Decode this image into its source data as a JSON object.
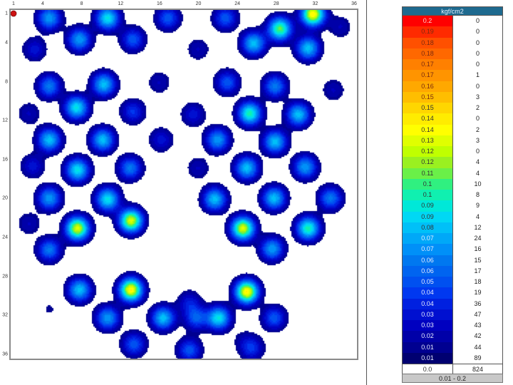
{
  "chart_data": {
    "type": "heatmap",
    "title": "",
    "unit": "kgf/cm2",
    "x_ticks": [
      "1",
      "4",
      "8",
      "12",
      "16",
      "20",
      "24",
      "28",
      "32",
      "36"
    ],
    "y_ticks": [
      "1",
      "4",
      "8",
      "12",
      "16",
      "20",
      "24",
      "28",
      "32",
      "36"
    ],
    "grid_size": [
      36,
      36
    ],
    "xlim": [
      1,
      36
    ],
    "ylim": [
      1,
      36
    ],
    "marker": {
      "col": 1,
      "row": 1,
      "color": "#cc1111"
    },
    "hotspots": [
      {
        "col": 4.6,
        "row": 1.4,
        "value": 0.07
      },
      {
        "col": 10.6,
        "row": 1.4,
        "value": 0.09
      },
      {
        "col": 7.7,
        "row": 3.6,
        "value": 0.07
      },
      {
        "col": 13.2,
        "row": 3.6,
        "value": 0.05
      },
      {
        "col": 3.1,
        "row": 4.6,
        "value": 0.03
      },
      {
        "col": 16.8,
        "row": 1.4,
        "value": 0.05
      },
      {
        "col": 4.6,
        "row": 8.4,
        "value": 0.06
      },
      {
        "col": 10.2,
        "row": 8.2,
        "value": 0.08
      },
      {
        "col": 15.9,
        "row": 8,
        "value": 0.02
      },
      {
        "col": 2.5,
        "row": 11.2,
        "value": 0.02
      },
      {
        "col": 7.4,
        "row": 10.6,
        "value": 0.09
      },
      {
        "col": 13.2,
        "row": 11,
        "value": 0.04
      },
      {
        "col": 4.6,
        "row": 13.9,
        "value": 0.08
      },
      {
        "col": 10.1,
        "row": 13.9,
        "value": 0.08
      },
      {
        "col": 16.1,
        "row": 13.9,
        "value": 0.03
      },
      {
        "col": 2.9,
        "row": 16.6,
        "value": 0.03
      },
      {
        "col": 7.5,
        "row": 17,
        "value": 0.09
      },
      {
        "col": 12.9,
        "row": 16.8,
        "value": 0.06
      },
      {
        "col": 4.6,
        "row": 19.9,
        "value": 0.07
      },
      {
        "col": 10.6,
        "row": 20,
        "value": 0.09
      },
      {
        "col": 2.5,
        "row": 22.5,
        "value": 0.02
      },
      {
        "col": 7.5,
        "row": 23,
        "value": 0.13
      },
      {
        "col": 13,
        "row": 22.2,
        "value": 0.13
      },
      {
        "col": 4.6,
        "row": 25.2,
        "value": 0.06
      },
      {
        "col": 7.7,
        "row": 29.3,
        "value": 0.08
      },
      {
        "col": 13,
        "row": 29.3,
        "value": 0.14
      },
      {
        "col": 4.6,
        "row": 31.3,
        "value": 0.01
      },
      {
        "col": 10.6,
        "row": 32.2,
        "value": 0.07
      },
      {
        "col": 16.3,
        "row": 32.2,
        "value": 0.08
      },
      {
        "col": 13.3,
        "row": 34.9,
        "value": 0.05
      },
      {
        "col": 22.7,
        "row": 1.4,
        "value": 0.05
      },
      {
        "col": 28.3,
        "row": 2.5,
        "value": 0.11
      },
      {
        "col": 25.6,
        "row": 4,
        "value": 0.08
      },
      {
        "col": 31.2,
        "row": 4.5,
        "value": 0.08
      },
      {
        "col": 31.7,
        "row": 1,
        "value": 0.14
      },
      {
        "col": 34.5,
        "row": 2.3,
        "value": 0.02
      },
      {
        "col": 19.9,
        "row": 4.6,
        "value": 0.02
      },
      {
        "col": 22.9,
        "row": 8,
        "value": 0.05
      },
      {
        "col": 27.8,
        "row": 8.4,
        "value": 0.06
      },
      {
        "col": 33.8,
        "row": 8.8,
        "value": 0.02
      },
      {
        "col": 19.4,
        "row": 11.3,
        "value": 0.03
      },
      {
        "col": 25.2,
        "row": 11.2,
        "value": 0.1
      },
      {
        "col": 30.2,
        "row": 11.3,
        "value": 0.08
      },
      {
        "col": 21.9,
        "row": 13.9,
        "value": 0.07
      },
      {
        "col": 27.8,
        "row": 14.1,
        "value": 0.08
      },
      {
        "col": 19.9,
        "row": 16.8,
        "value": 0.02
      },
      {
        "col": 24.9,
        "row": 16.8,
        "value": 0.08
      },
      {
        "col": 30.9,
        "row": 16.7,
        "value": 0.07
      },
      {
        "col": 21.6,
        "row": 20,
        "value": 0.08
      },
      {
        "col": 27.7,
        "row": 19.9,
        "value": 0.08
      },
      {
        "col": 33.5,
        "row": 19.9,
        "value": 0.06
      },
      {
        "col": 24.5,
        "row": 23,
        "value": 0.13
      },
      {
        "col": 31.2,
        "row": 23,
        "value": 0.1
      },
      {
        "col": 27.5,
        "row": 25.1,
        "value": 0.07
      },
      {
        "col": 24.9,
        "row": 29.5,
        "value": 0.14
      },
      {
        "col": 19.7,
        "row": 32.2,
        "value": 0.05
      },
      {
        "col": 22,
        "row": 32.2,
        "value": 0.09
      },
      {
        "col": 27.7,
        "row": 32.2,
        "value": 0.05
      },
      {
        "col": 19,
        "row": 35.5,
        "value": 0.05
      },
      {
        "col": 25.4,
        "row": 35.3,
        "value": 0.04
      },
      {
        "col": 24.5,
        "row": 34.4,
        "value": 0.01
      },
      {
        "col": 19,
        "row": 30.6,
        "value": 0.03
      }
    ]
  },
  "legend": {
    "header": "kgf/cm2",
    "rows": [
      {
        "label": "0.2",
        "count": "0",
        "color": "#ff0000"
      },
      {
        "label": "0.19",
        "count": "0",
        "color": "#ff2a00"
      },
      {
        "label": "0.18",
        "count": "0",
        "color": "#ff5000"
      },
      {
        "label": "0.18",
        "count": "0",
        "color": "#ff6800"
      },
      {
        "label": "0.17",
        "count": "0",
        "color": "#ff8000"
      },
      {
        "label": "0.17",
        "count": "1",
        "color": "#ff9400"
      },
      {
        "label": "0.16",
        "count": "0",
        "color": "#ffa800"
      },
      {
        "label": "0.15",
        "count": "3",
        "color": "#ffbe00"
      },
      {
        "label": "0.15",
        "count": "2",
        "color": "#ffd600"
      },
      {
        "label": "0.14",
        "count": "0",
        "color": "#ffec00"
      },
      {
        "label": "0.14",
        "count": "2",
        "color": "#ffff00"
      },
      {
        "label": "0.13",
        "count": "3",
        "color": "#e0ff00"
      },
      {
        "label": "0.12",
        "count": "0",
        "color": "#c0ff00"
      },
      {
        "label": "0.12",
        "count": "4",
        "color": "#9af020"
      },
      {
        "label": "0.11",
        "count": "4",
        "color": "#6af048"
      },
      {
        "label": "0.1",
        "count": "10",
        "color": "#30f080"
      },
      {
        "label": "0.1",
        "count": "8",
        "color": "#10f0b0"
      },
      {
        "label": "0.09",
        "count": "9",
        "color": "#00e8d8"
      },
      {
        "label": "0.09",
        "count": "4",
        "color": "#00d8f4"
      },
      {
        "label": "0.08",
        "count": "12",
        "color": "#00c0f8"
      },
      {
        "label": "0.07",
        "count": "24",
        "color": "#00a8f8"
      },
      {
        "label": "0.07",
        "count": "16",
        "color": "#0090f8"
      },
      {
        "label": "0.06",
        "count": "15",
        "color": "#0078f0"
      },
      {
        "label": "0.06",
        "count": "17",
        "color": "#0064f0"
      },
      {
        "label": "0.05",
        "count": "18",
        "color": "#0050f0"
      },
      {
        "label": "0.04",
        "count": "19",
        "color": "#0038f0"
      },
      {
        "label": "0.04",
        "count": "36",
        "color": "#0020e0"
      },
      {
        "label": "0.03",
        "count": "47",
        "color": "#0010d0"
      },
      {
        "label": "0.03",
        "count": "43",
        "color": "#0000c0"
      },
      {
        "label": "0.02",
        "count": "42",
        "color": "#0000a8"
      },
      {
        "label": "0.01",
        "count": "44",
        "color": "#000090"
      },
      {
        "label": "0.01",
        "count": "89",
        "color": "#000070"
      },
      {
        "label": "0.0",
        "count": "824",
        "color": "#ffffff"
      }
    ],
    "footer": "0.01 - 0.2"
  }
}
